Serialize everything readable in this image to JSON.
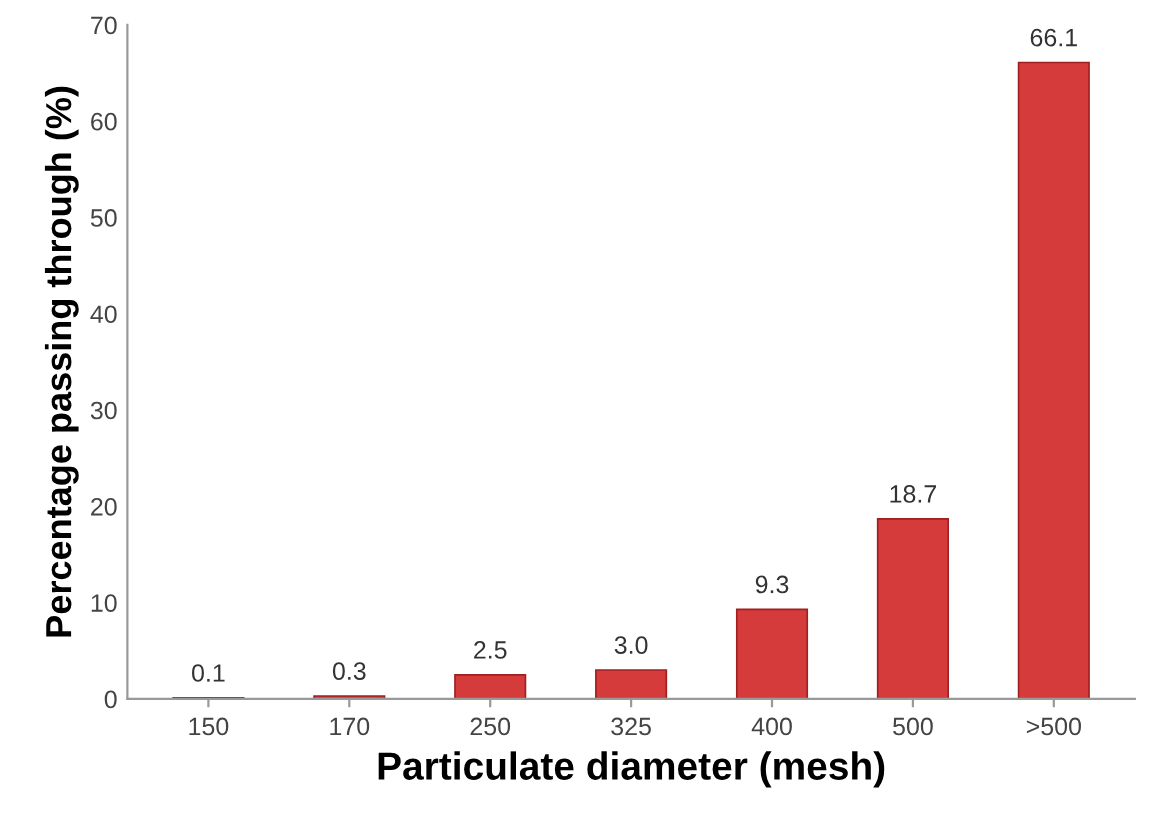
{
  "chart_data": {
    "type": "bar",
    "xlabel": "Particulate diameter (mesh)",
    "ylabel": "Percentage passing through (%)",
    "categories": [
      "150",
      "170",
      "250",
      "325",
      "400",
      "500",
      ">500"
    ],
    "values": [
      0.1,
      0.3,
      2.5,
      3.0,
      9.3,
      18.7,
      66.1
    ],
    "value_labels": [
      "0.1",
      "0.3",
      "2.5",
      "3.0",
      "9.3",
      "18.7",
      "66.1"
    ],
    "color": "#d63b3b",
    "ylim": [
      0,
      70
    ],
    "yticks": [
      0,
      10,
      20,
      30,
      40,
      50,
      60,
      70
    ],
    "grid": false,
    "legend": false
  }
}
